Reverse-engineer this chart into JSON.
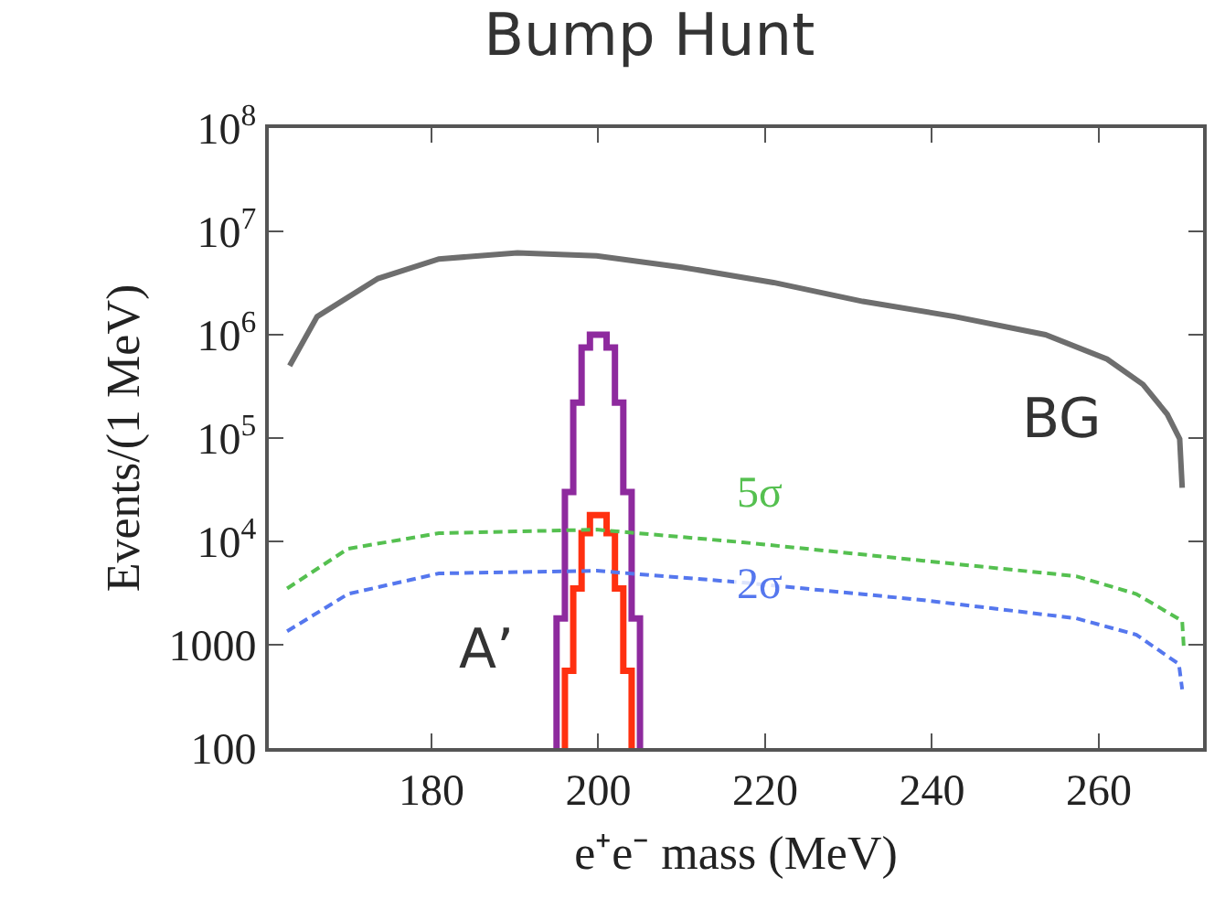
{
  "chart_data": {
    "type": "line",
    "title": "Bump Hunt",
    "xlabel": "e⁺e⁻ mass (MeV)",
    "ylabel": "Events/(1 MeV)",
    "log": "y",
    "xlim": [
      160.5,
      272.5
    ],
    "xticks": [
      180,
      200,
      220,
      240,
      260
    ],
    "ylim": [
      100,
      100000000
    ],
    "yticks": [
      100,
      1000,
      {
        "value": 10000,
        "label": "10$^{4}$"
      },
      {
        "value": 100000,
        "label": "10$^{5}$"
      },
      {
        "value": 1000000,
        "label": "10$^{6}$"
      },
      {
        "value": 10000000,
        "label": "10$^{7}$"
      },
      {
        "value": 100000000,
        "label": "10$^{8}$"
      }
    ],
    "legend": false,
    "series": [
      {
        "name": "BG",
        "color": "#6e6e6e",
        "x": [
          163,
          166.3,
          173.6,
          180.9,
          190.3,
          199.8,
          210,
          221,
          231.7,
          242.7,
          253.6,
          261,
          265.3,
          268.2,
          269.7,
          270
        ],
        "values": [
          500000,
          1500000,
          3500000,
          5400000,
          6200000,
          5800000,
          4500000,
          3200000,
          2100000,
          1500000,
          1000000,
          580000,
          330000,
          170000,
          98000,
          33000
        ]
      },
      {
        "name": "A’",
        "type": "step",
        "color": "#8e2a9e",
        "x": [
          195,
          195,
          196,
          197,
          198,
          199,
          200,
          201,
          202,
          203,
          204,
          205
        ],
        "values": [
          100,
          1800,
          30000,
          220000,
          750000,
          1000000,
          1000000,
          750000,
          220000,
          30000,
          1800,
          100
        ]
      },
      {
        "type": "step",
        "color": "#ff3010",
        "x": [
          196,
          196,
          197,
          198,
          199,
          200,
          201,
          202,
          203,
          204
        ],
        "values": [
          100,
          560,
          3500,
          12000,
          18000,
          18000,
          12000,
          3500,
          560,
          100
        ]
      },
      {
        "name": "5σ",
        "line_style": "dashed",
        "color": "#55c050",
        "x": [
          162.7,
          170,
          180.9,
          199.8,
          217.3,
          239,
          257.3,
          264.5,
          270,
          270.2
        ],
        "values": [
          3500,
          8500,
          12000,
          13000,
          9800,
          6500,
          4600,
          3100,
          1700,
          910
        ]
      },
      {
        "name": "2σ",
        "line_style": "dashed",
        "color": "#5577ee",
        "x": [
          162.7,
          170,
          180.9,
          199.8,
          217.3,
          239,
          257.3,
          264.5,
          269.6,
          270
        ],
        "values": [
          1350,
          3100,
          4900,
          5200,
          4000,
          2700,
          1800,
          1250,
          650,
          370
        ]
      }
    ]
  }
}
